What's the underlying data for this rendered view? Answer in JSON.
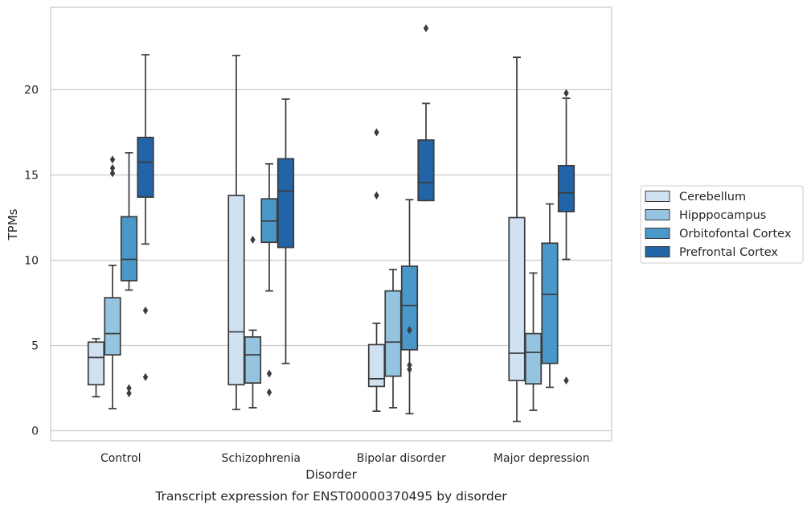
{
  "chart_data": {
    "type": "box",
    "caption": "Transcript expression for ENST00000370495 by disorder",
    "xlabel": "Disorder",
    "ylabel": "TPMs",
    "ylim": [
      -0.6,
      25
    ],
    "yticks": [
      0,
      5,
      10,
      15,
      20
    ],
    "grid": true,
    "legend_position": "right",
    "categories": [
      "Control",
      "Schizophrenia",
      "Bipolar disorder",
      "Major depression"
    ],
    "series": [
      {
        "name": "Cerebellum",
        "color": "#d0e1f2",
        "boxes": [
          {
            "whislo": 2.0,
            "q1": 2.7,
            "med": 4.3,
            "q3": 5.2,
            "whishi": 5.4,
            "fliers": []
          },
          {
            "whislo": 1.25,
            "q1": 2.7,
            "med": 5.8,
            "q3": 13.8,
            "whishi": 22.0,
            "fliers": []
          },
          {
            "whislo": 1.15,
            "q1": 2.6,
            "med": 3.05,
            "q3": 5.05,
            "whishi": 6.3,
            "fliers": [
              13.8,
              17.5
            ]
          },
          {
            "whislo": 0.55,
            "q1": 2.95,
            "med": 4.55,
            "q3": 12.5,
            "whishi": 21.9,
            "fliers": []
          }
        ]
      },
      {
        "name": "Hipppocampus",
        "color": "#94c4df",
        "boxes": [
          {
            "whislo": 1.3,
            "q1": 4.45,
            "med": 5.7,
            "q3": 7.8,
            "whishi": 9.7,
            "fliers": [
              15.1,
              15.4,
              15.9
            ]
          },
          {
            "whislo": 1.35,
            "q1": 2.8,
            "med": 4.45,
            "q3": 5.5,
            "whishi": 5.9,
            "fliers": [
              11.2
            ]
          },
          {
            "whislo": 1.35,
            "q1": 3.2,
            "med": 5.2,
            "q3": 8.2,
            "whishi": 9.45,
            "fliers": []
          },
          {
            "whislo": 1.2,
            "q1": 2.75,
            "med": 4.6,
            "q3": 5.7,
            "whishi": 9.25,
            "fliers": []
          }
        ]
      },
      {
        "name": "Orbitofontal Cortex",
        "color": "#4a98c9",
        "boxes": [
          {
            "whislo": 8.25,
            "q1": 8.8,
            "med": 10.05,
            "q3": 12.55,
            "whishi": 16.3,
            "fliers": [
              2.2,
              2.5
            ]
          },
          {
            "whislo": 8.2,
            "q1": 11.05,
            "med": 12.3,
            "q3": 13.6,
            "whishi": 15.65,
            "fliers": [
              2.25,
              3.35
            ]
          },
          {
            "whislo": 1.0,
            "q1": 4.75,
            "med": 7.35,
            "q3": 9.65,
            "whishi": 13.55,
            "fliers": [
              3.6,
              3.85,
              5.9
            ]
          },
          {
            "whislo": 2.55,
            "q1": 3.95,
            "med": 8.0,
            "q3": 11.0,
            "whishi": 13.3,
            "fliers": []
          }
        ]
      },
      {
        "name": "Prefrontal Cortex",
        "color": "#2264a8",
        "boxes": [
          {
            "whislo": 10.95,
            "q1": 13.7,
            "med": 15.75,
            "q3": 17.2,
            "whishi": 22.05,
            "fliers": [
              3.15,
              7.05
            ]
          },
          {
            "whislo": 3.95,
            "q1": 10.75,
            "med": 14.05,
            "q3": 15.95,
            "whishi": 19.45,
            "fliers": []
          },
          {
            "whislo": 13.5,
            "q1": 13.5,
            "med": 14.55,
            "q3": 17.05,
            "whishi": 19.2,
            "fliers": [
              23.6
            ]
          },
          {
            "whislo": 10.05,
            "q1": 12.85,
            "med": 13.95,
            "q3": 15.55,
            "whishi": 19.5,
            "fliers": [
              2.95,
              19.8
            ]
          }
        ]
      }
    ]
  }
}
